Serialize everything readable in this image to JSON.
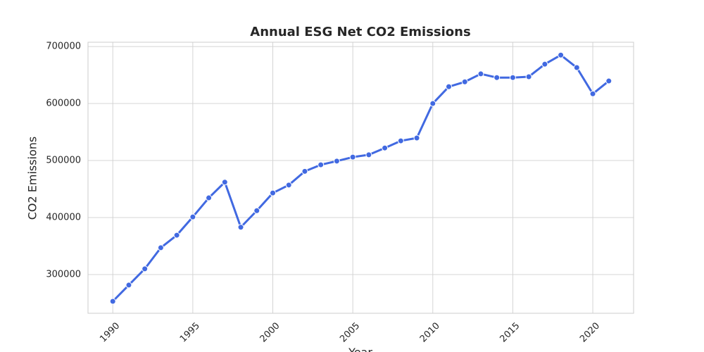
{
  "chart_data": {
    "type": "line",
    "title": "Annual ESG Net CO2 Emissions",
    "x_label": "Year",
    "y_label": "CO2 Emissions",
    "x": [
      1990,
      1991,
      1992,
      1993,
      1994,
      1995,
      1996,
      1997,
      1998,
      1999,
      2000,
      2001,
      2002,
      2003,
      2004,
      2005,
      2006,
      2007,
      2008,
      2009,
      2010,
      2011,
      2012,
      2013,
      2014,
      2015,
      2016,
      2017,
      2018,
      2019,
      2020,
      2021
    ],
    "series": [
      {
        "name": "CO2 Emissions",
        "color": "#4169e1",
        "values": [
          253000,
          281500,
          310000,
          347000,
          369000,
          401000,
          434500,
          462000,
          383000,
          412000,
          443000,
          457000,
          481000,
          492500,
          499000,
          506000,
          510000,
          522000,
          534500,
          539500,
          600000,
          629500,
          638000,
          652000,
          645500,
          645500,
          647000,
          669000,
          685000,
          663000,
          617000,
          639500
        ]
      }
    ],
    "xlim": [
      1988.45,
      2022.55
    ],
    "xticks": [
      1990,
      1995,
      2000,
      2005,
      2010,
      2015,
      2020
    ],
    "ylim": [
      232000,
      707500
    ],
    "yticks": [
      300000,
      400000,
      500000,
      600000,
      700000
    ],
    "grid": true
  }
}
